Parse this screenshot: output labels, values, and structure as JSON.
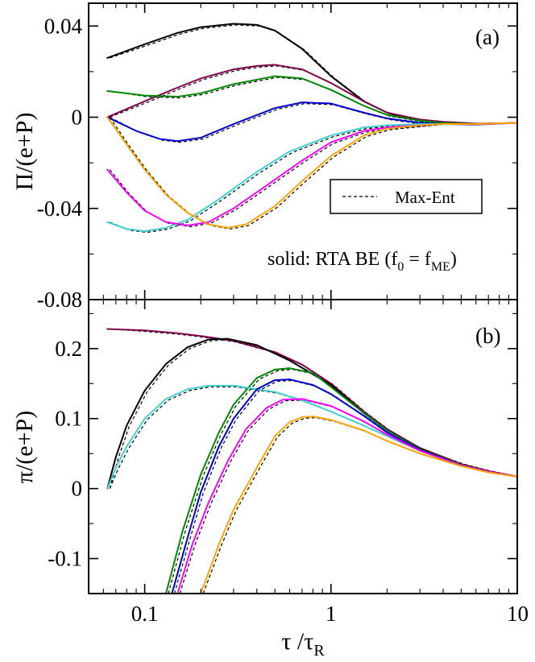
{
  "chart_data": [
    {
      "type": "line",
      "panel_label": "(a)",
      "ylabel": "Π/(e+P)",
      "ylim": [
        -0.08,
        0.05
      ],
      "yticks": [
        0.04,
        0,
        -0.04,
        -0.08
      ],
      "ytick_labels": [
        "0.04",
        "0",
        "-0.04",
        "-0.08"
      ],
      "xscale": "log",
      "xlim": [
        0.05,
        10
      ],
      "legend": {
        "entries": [
          {
            "label": "Max-Ent",
            "style": "dashed"
          }
        ],
        "position": "middle-right"
      },
      "annotation": {
        "prefix": "solid: RTA BE (f",
        "sub0": "0",
        "mid": " = f",
        "sub1": "ME",
        "suffix": ")"
      },
      "series": [
        {
          "name": "black",
          "color": "#000000",
          "points": [
            [
              0.063,
              0.026
            ],
            [
              0.1,
              0.032
            ],
            [
              0.15,
              0.037
            ],
            [
              0.2,
              0.0395
            ],
            [
              0.3,
              0.041
            ],
            [
              0.4,
              0.0405
            ],
            [
              0.5,
              0.038
            ],
            [
              0.7,
              0.03
            ],
            [
              1.0,
              0.018
            ],
            [
              1.5,
              0.007
            ],
            [
              2,
              0.002
            ],
            [
              3,
              -0.0015
            ],
            [
              4,
              -0.0025
            ],
            [
              6,
              -0.003
            ],
            [
              10,
              -0.0025
            ]
          ]
        },
        {
          "name": "purple",
          "color": "#800050",
          "points": [
            [
              0.063,
              0.0
            ],
            [
              0.1,
              0.007
            ],
            [
              0.15,
              0.013
            ],
            [
              0.2,
              0.017
            ],
            [
              0.3,
              0.021
            ],
            [
              0.4,
              0.0225
            ],
            [
              0.5,
              0.023
            ],
            [
              0.7,
              0.021
            ],
            [
              1.0,
              0.015
            ],
            [
              1.5,
              0.007
            ],
            [
              2,
              0.002
            ],
            [
              3,
              -0.001
            ],
            [
              4,
              -0.002
            ],
            [
              6,
              -0.0028
            ],
            [
              10,
              -0.0025
            ]
          ]
        },
        {
          "name": "green",
          "color": "#008800",
          "points": [
            [
              0.063,
              0.0115
            ],
            [
              0.1,
              0.0095
            ],
            [
              0.15,
              0.009
            ],
            [
              0.2,
              0.0105
            ],
            [
              0.3,
              0.0145
            ],
            [
              0.5,
              0.018
            ],
            [
              0.7,
              0.017
            ],
            [
              1.0,
              0.012
            ],
            [
              1.5,
              0.005
            ],
            [
              2,
              0.001
            ],
            [
              3,
              -0.0015
            ],
            [
              4,
              -0.0025
            ],
            [
              6,
              -0.003
            ],
            [
              10,
              -0.0025
            ]
          ]
        },
        {
          "name": "blue",
          "color": "#0000cc",
          "points": [
            [
              0.063,
              0.0
            ],
            [
              0.09,
              -0.006
            ],
            [
              0.12,
              -0.0095
            ],
            [
              0.15,
              -0.0105
            ],
            [
              0.2,
              -0.009
            ],
            [
              0.3,
              -0.003
            ],
            [
              0.5,
              0.004
            ],
            [
              0.7,
              0.0065
            ],
            [
              1.0,
              0.006
            ],
            [
              1.5,
              0.002
            ],
            [
              2,
              -0.0005
            ],
            [
              3,
              -0.0025
            ],
            [
              4,
              -0.003
            ],
            [
              6,
              -0.0032
            ],
            [
              10,
              -0.0025
            ]
          ]
        },
        {
          "name": "cyan",
          "color": "#40d0d0",
          "points": [
            [
              0.063,
              -0.046
            ],
            [
              0.08,
              -0.049
            ],
            [
              0.1,
              -0.05
            ],
            [
              0.13,
              -0.0485
            ],
            [
              0.17,
              -0.045
            ],
            [
              0.25,
              -0.036
            ],
            [
              0.4,
              -0.024
            ],
            [
              0.6,
              -0.015
            ],
            [
              1.0,
              -0.008
            ],
            [
              1.5,
              -0.0045
            ],
            [
              2,
              -0.0035
            ],
            [
              3,
              -0.003
            ],
            [
              4,
              -0.003
            ],
            [
              6,
              -0.003
            ],
            [
              10,
              -0.0025
            ]
          ]
        },
        {
          "name": "magenta",
          "color": "#ff00ff",
          "points": [
            [
              0.063,
              -0.023
            ],
            [
              0.08,
              -0.033
            ],
            [
              0.1,
              -0.041
            ],
            [
              0.13,
              -0.046
            ],
            [
              0.17,
              -0.0475
            ],
            [
              0.22,
              -0.046
            ],
            [
              0.3,
              -0.04
            ],
            [
              0.45,
              -0.03
            ],
            [
              0.7,
              -0.019
            ],
            [
              1.0,
              -0.011
            ],
            [
              1.5,
              -0.006
            ],
            [
              2,
              -0.0045
            ],
            [
              3,
              -0.0035
            ],
            [
              4,
              -0.003
            ],
            [
              6,
              -0.003
            ],
            [
              10,
              -0.0025
            ]
          ]
        },
        {
          "name": "orange",
          "color": "#ffa500",
          "points": [
            [
              0.063,
              0.0
            ],
            [
              0.08,
              -0.012
            ],
            [
              0.1,
              -0.023
            ],
            [
              0.13,
              -0.034
            ],
            [
              0.17,
              -0.042
            ],
            [
              0.22,
              -0.047
            ],
            [
              0.28,
              -0.0485
            ],
            [
              0.35,
              -0.047
            ],
            [
              0.5,
              -0.039
            ],
            [
              0.7,
              -0.028
            ],
            [
              1.0,
              -0.017
            ],
            [
              1.5,
              -0.008
            ],
            [
              2,
              -0.005
            ],
            [
              3,
              -0.0035
            ],
            [
              4,
              -0.003
            ],
            [
              6,
              -0.003
            ],
            [
              10,
              -0.0025
            ]
          ]
        }
      ]
    },
    {
      "type": "line",
      "panel_label": "(b)",
      "ylabel": "π/(e+P)",
      "ylim": [
        -0.15,
        0.27
      ],
      "yticks": [
        0.2,
        0.1,
        0,
        -0.1
      ],
      "ytick_labels": [
        "0.2",
        "0.1",
        "0",
        "-0.1"
      ],
      "xscale": "log",
      "xlim": [
        0.05,
        10
      ],
      "xticks": [
        0.1,
        1,
        10
      ],
      "xtick_labels": [
        "0.1",
        "1",
        "10"
      ],
      "xlabel": {
        "tau": "τ",
        "slash": " /",
        "tau_r": "τ",
        "sub": "R"
      },
      "series": [
        {
          "name": "purple",
          "color": "#800050",
          "points": [
            [
              0.063,
              0.228
            ],
            [
              0.1,
              0.226
            ],
            [
              0.15,
              0.222
            ],
            [
              0.2,
              0.218
            ],
            [
              0.3,
              0.211
            ],
            [
              0.5,
              0.195
            ],
            [
              0.7,
              0.177
            ],
            [
              1.0,
              0.15
            ],
            [
              1.5,
              0.11
            ],
            [
              2,
              0.085
            ],
            [
              3,
              0.058
            ],
            [
              5,
              0.035
            ],
            [
              7,
              0.025
            ],
            [
              10,
              0.017
            ]
          ]
        },
        {
          "name": "black",
          "color": "#000000",
          "points": [
            [
              0.063,
              0.0
            ],
            [
              0.07,
              0.045
            ],
            [
              0.08,
              0.09
            ],
            [
              0.1,
              0.14
            ],
            [
              0.13,
              0.178
            ],
            [
              0.17,
              0.202
            ],
            [
              0.22,
              0.213
            ],
            [
              0.28,
              0.214
            ],
            [
              0.4,
              0.205
            ],
            [
              0.6,
              0.183
            ],
            [
              1.0,
              0.148
            ],
            [
              1.5,
              0.108
            ],
            [
              2,
              0.083
            ],
            [
              3,
              0.057
            ],
            [
              5,
              0.034
            ],
            [
              7,
              0.024
            ],
            [
              10,
              0.017
            ]
          ]
        },
        {
          "name": "green",
          "color": "#008800",
          "points": [
            [
              0.13,
              -0.15
            ],
            [
              0.16,
              -0.06
            ],
            [
              0.2,
              0.02
            ],
            [
              0.25,
              0.08
            ],
            [
              0.3,
              0.12
            ],
            [
              0.4,
              0.158
            ],
            [
              0.5,
              0.17
            ],
            [
              0.6,
              0.172
            ],
            [
              0.8,
              0.165
            ],
            [
              1.0,
              0.145
            ],
            [
              1.5,
              0.108
            ],
            [
              2,
              0.083
            ],
            [
              3,
              0.056
            ],
            [
              5,
              0.034
            ],
            [
              7,
              0.024
            ],
            [
              10,
              0.017
            ]
          ]
        },
        {
          "name": "cyan",
          "color": "#40d0d0",
          "points": [
            [
              0.063,
              0.0
            ],
            [
              0.07,
              0.03
            ],
            [
              0.08,
              0.06
            ],
            [
              0.1,
              0.1
            ],
            [
              0.13,
              0.128
            ],
            [
              0.17,
              0.142
            ],
            [
              0.22,
              0.147
            ],
            [
              0.3,
              0.147
            ],
            [
              0.5,
              0.138
            ],
            [
              0.7,
              0.126
            ],
            [
              1.0,
              0.11
            ],
            [
              1.5,
              0.09
            ],
            [
              2,
              0.075
            ],
            [
              3,
              0.054
            ],
            [
              5,
              0.033
            ],
            [
              7,
              0.024
            ],
            [
              10,
              0.017
            ]
          ]
        },
        {
          "name": "blue",
          "color": "#0000cc",
          "points": [
            [
              0.14,
              -0.15
            ],
            [
              0.17,
              -0.07
            ],
            [
              0.2,
              -0.005
            ],
            [
              0.25,
              0.06
            ],
            [
              0.3,
              0.1
            ],
            [
              0.4,
              0.142
            ],
            [
              0.5,
              0.155
            ],
            [
              0.6,
              0.156
            ],
            [
              0.8,
              0.148
            ],
            [
              1.0,
              0.135
            ],
            [
              1.5,
              0.104
            ],
            [
              2,
              0.08
            ],
            [
              3,
              0.055
            ],
            [
              5,
              0.033
            ],
            [
              7,
              0.024
            ],
            [
              10,
              0.017
            ]
          ]
        },
        {
          "name": "magenta",
          "color": "#ff00ff",
          "points": [
            [
              0.15,
              -0.15
            ],
            [
              0.18,
              -0.08
            ],
            [
              0.22,
              -0.02
            ],
            [
              0.28,
              0.04
            ],
            [
              0.35,
              0.085
            ],
            [
              0.45,
              0.115
            ],
            [
              0.55,
              0.127
            ],
            [
              0.7,
              0.128
            ],
            [
              1.0,
              0.118
            ],
            [
              1.5,
              0.096
            ],
            [
              2,
              0.077
            ],
            [
              3,
              0.054
            ],
            [
              5,
              0.033
            ],
            [
              7,
              0.024
            ],
            [
              10,
              0.017
            ]
          ]
        },
        {
          "name": "orange",
          "color": "#ffa500",
          "points": [
            [
              0.2,
              -0.15
            ],
            [
              0.25,
              -0.08
            ],
            [
              0.3,
              -0.03
            ],
            [
              0.4,
              0.03
            ],
            [
              0.5,
              0.075
            ],
            [
              0.6,
              0.095
            ],
            [
              0.7,
              0.102
            ],
            [
              0.8,
              0.103
            ],
            [
              1.0,
              0.098
            ],
            [
              1.5,
              0.083
            ],
            [
              2,
              0.068
            ],
            [
              3,
              0.05
            ],
            [
              5,
              0.032
            ],
            [
              7,
              0.023
            ],
            [
              10,
              0.017
            ]
          ]
        }
      ]
    }
  ]
}
